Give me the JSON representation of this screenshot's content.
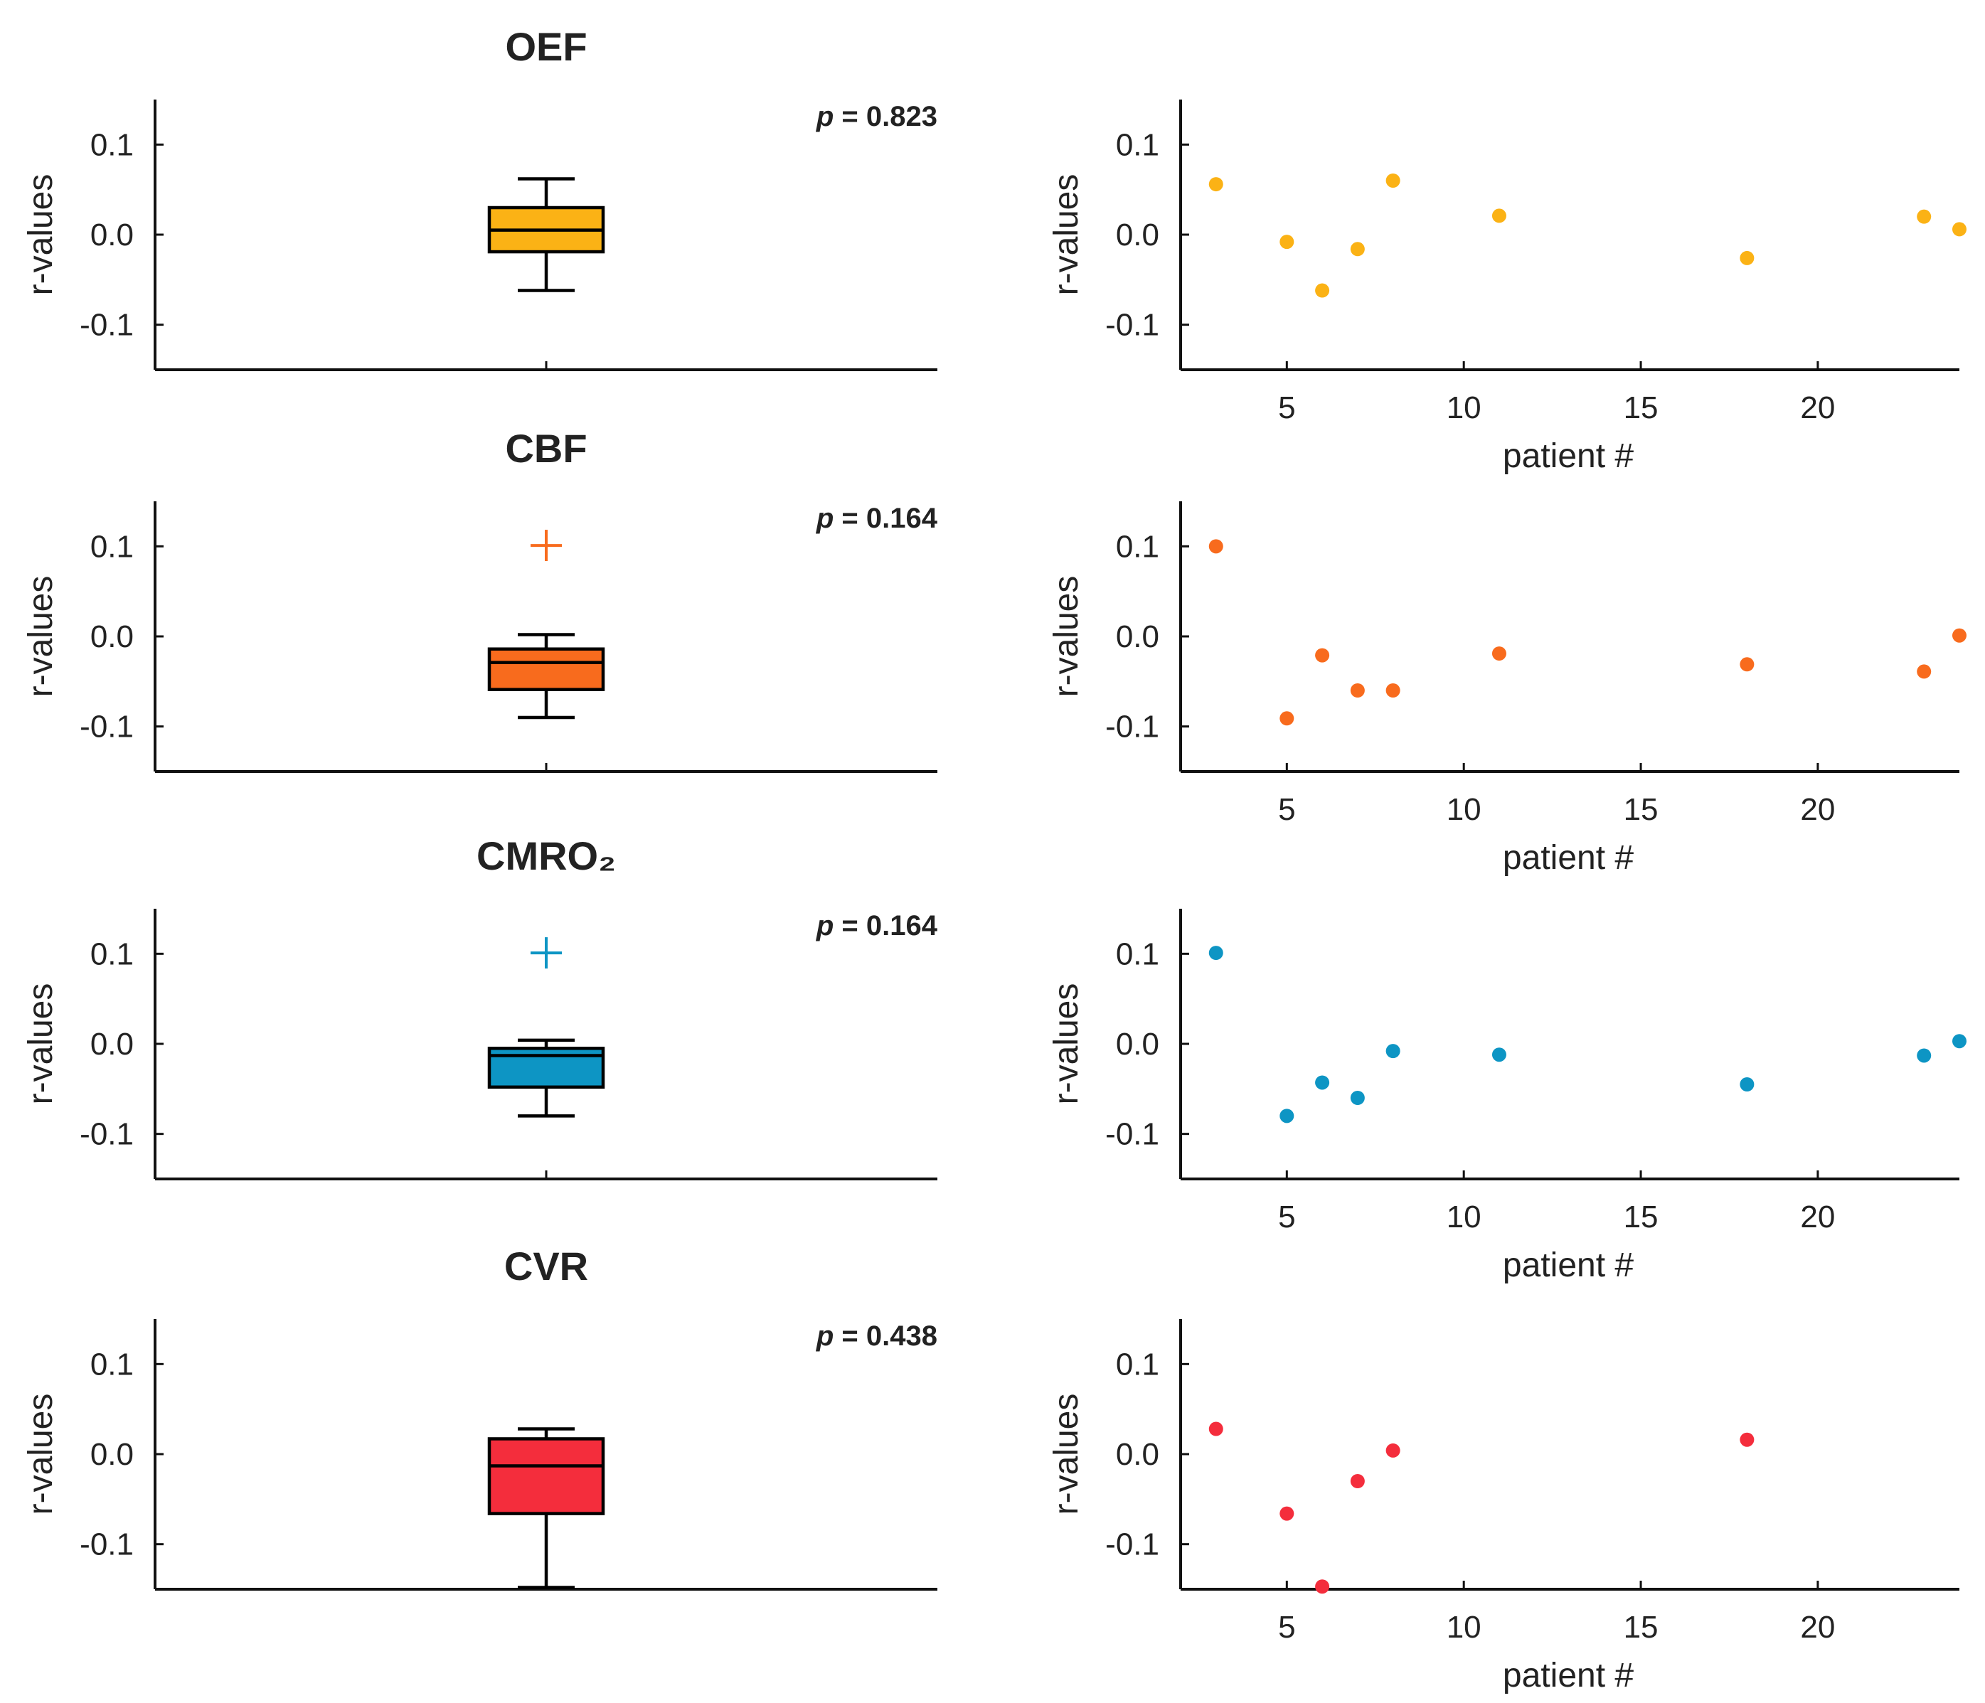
{
  "chart_data": [
    {
      "type": "box",
      "title": "OEF",
      "ylabel": "r-values",
      "ylim": [
        -0.15,
        0.15
      ],
      "yticks": [
        "0.1",
        "0.0",
        "-0.1"
      ],
      "color": "#FBB215",
      "box": {
        "whisker_low": -0.062,
        "q1": -0.019,
        "median": 0.005,
        "q3": 0.03,
        "whisker_high": 0.062
      },
      "outliers": [],
      "p_label": "p",
      "p_value": "= 0.823"
    },
    {
      "type": "scatter",
      "ylabel": "r-values",
      "xlabel": "patient #",
      "xlim": [
        2,
        24
      ],
      "ylim": [
        -0.15,
        0.15
      ],
      "xticks": [
        "5",
        "10",
        "15",
        "20"
      ],
      "yticks": [
        "0.1",
        "0.0",
        "-0.1"
      ],
      "color": "#FBB215",
      "x": [
        3,
        5,
        6,
        7,
        8,
        11,
        18,
        23,
        24
      ],
      "y": [
        0.056,
        -0.008,
        -0.062,
        -0.016,
        0.06,
        0.021,
        -0.026,
        0.02,
        0.006
      ]
    },
    {
      "type": "box",
      "title": "CBF",
      "ylabel": "r-values",
      "ylim": [
        -0.15,
        0.15
      ],
      "yticks": [
        "0.1",
        "0.0",
        "-0.1"
      ],
      "color": "#F86B1D",
      "box": {
        "whisker_low": -0.09,
        "q1": -0.059,
        "median": -0.029,
        "q3": -0.014,
        "whisker_high": 0.002
      },
      "outliers": [
        0.101
      ],
      "p_label": "p",
      "p_value": "= 0.164"
    },
    {
      "type": "scatter",
      "ylabel": "r-values",
      "xlabel": "patient #",
      "xlim": [
        2,
        24
      ],
      "ylim": [
        -0.15,
        0.15
      ],
      "xticks": [
        "5",
        "10",
        "15",
        "20"
      ],
      "yticks": [
        "0.1",
        "0.0",
        "-0.1"
      ],
      "color": "#F86B1D",
      "x": [
        3,
        5,
        6,
        7,
        8,
        11,
        18,
        23,
        24
      ],
      "y": [
        0.1,
        -0.091,
        -0.021,
        -0.06,
        -0.06,
        -0.019,
        -0.031,
        -0.039,
        0.001
      ]
    },
    {
      "type": "box",
      "title": "CMRO₂",
      "ylabel": "r-values",
      "ylim": [
        -0.15,
        0.15
      ],
      "yticks": [
        "0.1",
        "0.0",
        "-0.1"
      ],
      "color": "#0D95C4",
      "box": {
        "whisker_low": -0.08,
        "q1": -0.048,
        "median": -0.013,
        "q3": -0.005,
        "whisker_high": 0.004
      },
      "outliers": [
        0.101
      ],
      "p_label": "p",
      "p_value": "= 0.164"
    },
    {
      "type": "scatter",
      "ylabel": "r-values",
      "xlabel": "patient #",
      "xlim": [
        2,
        24
      ],
      "ylim": [
        -0.15,
        0.15
      ],
      "xticks": [
        "5",
        "10",
        "15",
        "20"
      ],
      "yticks": [
        "0.1",
        "0.0",
        "-0.1"
      ],
      "color": "#0D95C4",
      "x": [
        3,
        5,
        6,
        7,
        8,
        11,
        18,
        23,
        24
      ],
      "y": [
        0.101,
        -0.08,
        -0.043,
        -0.06,
        -0.008,
        -0.012,
        -0.045,
        -0.013,
        0.003
      ]
    },
    {
      "type": "box",
      "title": "CVR",
      "ylabel": "r-values",
      "ylim": [
        -0.15,
        0.15
      ],
      "yticks": [
        "0.1",
        "0.0",
        "-0.1"
      ],
      "color": "#F42D3C",
      "box": {
        "whisker_low": -0.148,
        "q1": -0.066,
        "median": -0.013,
        "q3": 0.017,
        "whisker_high": 0.028
      },
      "outliers": [],
      "p_label": "p",
      "p_value": "= 0.438"
    },
    {
      "type": "scatter",
      "ylabel": "r-values",
      "xlabel": "patient #",
      "xlim": [
        2,
        24
      ],
      "ylim": [
        -0.15,
        0.15
      ],
      "xticks": [
        "5",
        "10",
        "15",
        "20"
      ],
      "yticks": [
        "0.1",
        "0.0",
        "-0.1"
      ],
      "color": "#F42D3C",
      "x": [
        3,
        5,
        6,
        7,
        8,
        18
      ],
      "y": [
        0.028,
        -0.066,
        -0.147,
        -0.03,
        0.004,
        0.016
      ]
    }
  ]
}
